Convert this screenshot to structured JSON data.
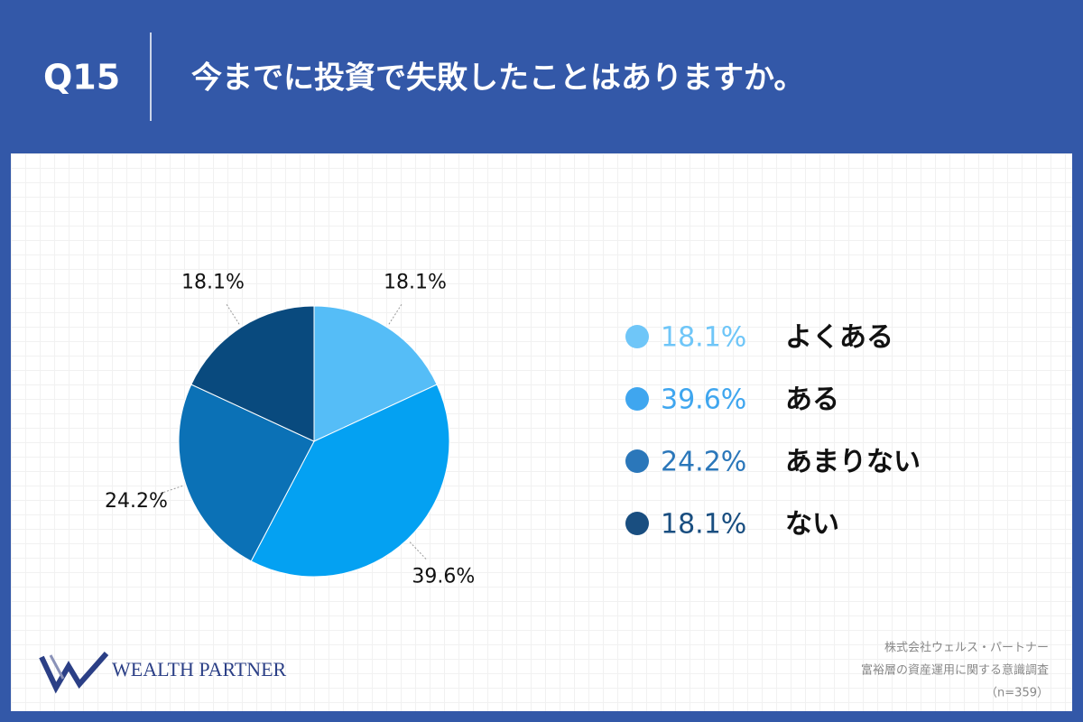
{
  "header": {
    "number": "Q15",
    "question": "今までに投資で失敗したことはありますか。"
  },
  "chart_data": {
    "type": "pie",
    "categories": [
      "よくある",
      "ある",
      "あまりない",
      "ない"
    ],
    "values": [
      18.1,
      39.6,
      24.2,
      18.1
    ],
    "value_labels": [
      "18.1%",
      "39.6%",
      "24.2%",
      "18.1%"
    ],
    "colors": [
      "#55bdf7",
      "#04a1f2",
      "#0b71b6",
      "#094a7e"
    ],
    "legend_colors": [
      "#6fc6f8",
      "#3fa6ef",
      "#2b77ba",
      "#194e80"
    ],
    "legend": "right"
  },
  "footer": {
    "logo": "WEALTH PARTNER",
    "source": [
      "株式会社ウェルス・パートナー",
      "富裕層の資産運用に関する意識調査",
      "（n=359）"
    ]
  }
}
